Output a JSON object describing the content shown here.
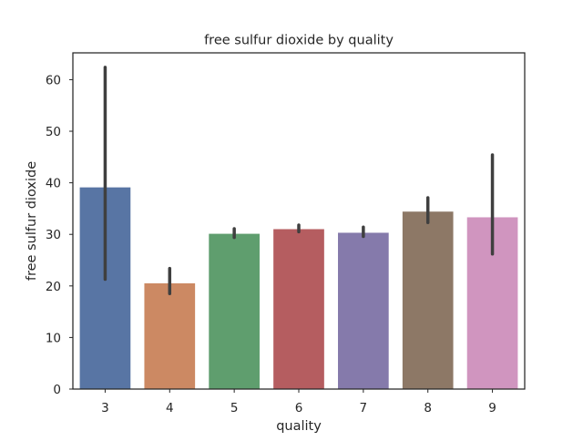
{
  "chart_data": {
    "type": "bar",
    "title": "free sulfur dioxide by quality",
    "xlabel": "quality",
    "ylabel": "free sulfur dioxide",
    "categories": [
      "3",
      "4",
      "5",
      "6",
      "7",
      "8",
      "9"
    ],
    "values": [
      39.2,
      20.6,
      30.2,
      31.1,
      30.4,
      34.5,
      33.4
    ],
    "error_low": [
      21.3,
      18.5,
      29.4,
      30.5,
      29.6,
      32.3,
      26.2
    ],
    "error_high": [
      62.4,
      23.4,
      31.1,
      31.8,
      31.4,
      37.1,
      45.4
    ],
    "colors": [
      "#5875a4",
      "#cc8963",
      "#5f9e6e",
      "#b55d60",
      "#857aab",
      "#8d7866",
      "#d095bf"
    ],
    "error_color": "#3f3f3f",
    "ylim": [
      0,
      65.2
    ],
    "yticks": [
      0,
      10,
      20,
      30,
      40,
      50,
      60
    ],
    "grid": false
  }
}
